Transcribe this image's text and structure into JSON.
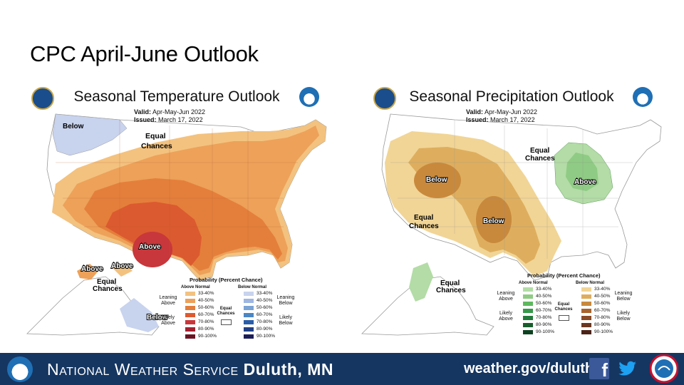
{
  "slide": {
    "title": "CPC April-June Outlook"
  },
  "temperature": {
    "title": "Seasonal Temperature Outlook",
    "valid_label": "Valid:",
    "valid_value": "Apr-May-Jun 2022",
    "issued_label": "Issued:",
    "issued_value": "March 17, 2022",
    "labels": {
      "below_nw": "Below",
      "equal_1": "Equal",
      "equal_2": "Chances",
      "above": "Above",
      "ak_above_1": "Above",
      "ak_above_2": "Above",
      "ak_equal_1": "Equal",
      "ak_equal_2": "Chances",
      "ak_below": "Below"
    },
    "legend": {
      "title": "Probability (Percent Chance)",
      "above_header": "Above Normal",
      "below_header": "Below Normal",
      "leaning_above": "Leaning Above",
      "likely_above": "Likely Above",
      "leaning_below": "Leaning Below",
      "likely_below": "Likely Below",
      "equal": "Equal Chances",
      "bins": [
        "33-40%",
        "40-50%",
        "50-60%",
        "60-70%",
        "70-80%",
        "80-90%",
        "90-100%"
      ],
      "above_colors": [
        "#f3c27f",
        "#eda159",
        "#e47f3b",
        "#dc5a2f",
        "#c8373b",
        "#a3202f",
        "#6b1424"
      ],
      "below_colors": [
        "#c8d3ee",
        "#9fb6e2",
        "#7aa3d6",
        "#4b86c4",
        "#2a5ea8",
        "#203f86",
        "#1b1e58"
      ]
    }
  },
  "precipitation": {
    "title": "Seasonal Precipitation Outlook",
    "valid_label": "Valid:",
    "valid_value": "Apr-May-Jun 2022",
    "issued_label": "Issued:",
    "issued_value": "March 17, 2022",
    "labels": {
      "below_1": "Below",
      "below_2": "Below",
      "equal_w_1": "Equal",
      "equal_w_2": "Chances",
      "equal_ne_1": "Equal",
      "equal_ne_2": "Chances",
      "above": "Above",
      "ak_equal_1": "Equal",
      "ak_equal_2": "Chances"
    },
    "legend": {
      "title": "Probability (Percent Chance)",
      "above_header": "Above Normal",
      "below_header": "Below Normal",
      "leaning_above": "Leaning Above",
      "likely_above": "Likely Above",
      "leaning_below": "Leaning Below",
      "likely_below": "Likely Below",
      "equal": "Equal Chances",
      "bins": [
        "33-40%",
        "40-50%",
        "50-60%",
        "60-70%",
        "70-80%",
        "80-90%",
        "90-100%"
      ],
      "above_colors": [
        "#b3dca6",
        "#8fcb84",
        "#5db85e",
        "#36994a",
        "#227a3b",
        "#185e2d",
        "#0d4220"
      ],
      "below_colors": [
        "#f1d596",
        "#deae5e",
        "#c9893c",
        "#a9642c",
        "#8a4b26",
        "#6b3720",
        "#4b2318"
      ]
    }
  },
  "footer": {
    "org_prefix": "National Weather Service",
    "org_office": "Duluth, MN",
    "url": "weather.gov/duluth",
    "facebook_icon": "facebook-icon",
    "twitter_icon": "twitter-icon"
  }
}
